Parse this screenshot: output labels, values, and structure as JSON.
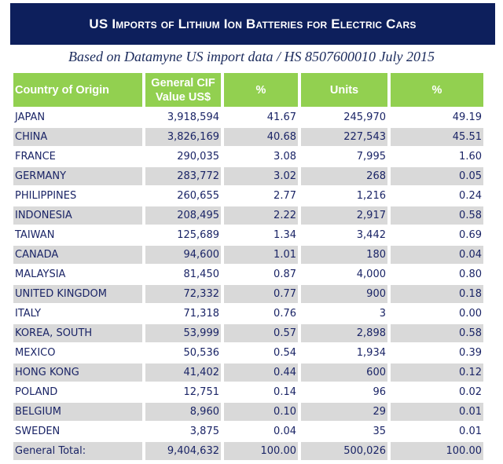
{
  "title": "US Imports of Lithium Ion Batteries for Electric Cars",
  "subtitle": "Based on Datamyne US import data / HS 8507600010 July 2015",
  "colors": {
    "title_bg": "#0d1f5c",
    "header_bg": "#92d050",
    "row_shade": "#d9d9d9",
    "text": "#1a2466"
  },
  "headers": [
    "Country of Origin",
    "General CIF Value US$",
    "%",
    "Units",
    "%"
  ],
  "header_lines": {
    "cif_line1": "General CIF",
    "cif_line2": "Value US$"
  },
  "rows": [
    {
      "country": "JAPAN",
      "value": "3,918,594",
      "value_pct": "41.67",
      "units": "245,970",
      "units_pct": "49.19"
    },
    {
      "country": "CHINA",
      "value": "3,826,169",
      "value_pct": "40.68",
      "units": "227,543",
      "units_pct": "45.51"
    },
    {
      "country": "FRANCE",
      "value": "290,035",
      "value_pct": "3.08",
      "units": "7,995",
      "units_pct": "1.60"
    },
    {
      "country": "GERMANY",
      "value": "283,772",
      "value_pct": "3.02",
      "units": "268",
      "units_pct": "0.05"
    },
    {
      "country": "PHILIPPINES",
      "value": "260,655",
      "value_pct": "2.77",
      "units": "1,216",
      "units_pct": "0.24"
    },
    {
      "country": "INDONESIA",
      "value": "208,495",
      "value_pct": "2.22",
      "units": "2,917",
      "units_pct": "0.58"
    },
    {
      "country": "TAIWAN",
      "value": "125,689",
      "value_pct": "1.34",
      "units": "3,442",
      "units_pct": "0.69"
    },
    {
      "country": "CANADA",
      "value": "94,600",
      "value_pct": "1.01",
      "units": "180",
      "units_pct": "0.04"
    },
    {
      "country": "MALAYSIA",
      "value": "81,450",
      "value_pct": "0.87",
      "units": "4,000",
      "units_pct": "0.80"
    },
    {
      "country": "UNITED KINGDOM",
      "value": "72,332",
      "value_pct": "0.77",
      "units": "900",
      "units_pct": "0.18"
    },
    {
      "country": "ITALY",
      "value": "71,318",
      "value_pct": "0.76",
      "units": "3",
      "units_pct": "0.00"
    },
    {
      "country": "KOREA, SOUTH",
      "value": "53,999",
      "value_pct": "0.57",
      "units": "2,898",
      "units_pct": "0.58"
    },
    {
      "country": "MEXICO",
      "value": "50,536",
      "value_pct": "0.54",
      "units": "1,934",
      "units_pct": "0.39"
    },
    {
      "country": "HONG KONG",
      "value": "41,402",
      "value_pct": "0.44",
      "units": "600",
      "units_pct": "0.12"
    },
    {
      "country": "POLAND",
      "value": "12,751",
      "value_pct": "0.14",
      "units": "96",
      "units_pct": "0.02"
    },
    {
      "country": "BELGIUM",
      "value": "8,960",
      "value_pct": "0.10",
      "units": "29",
      "units_pct": "0.01"
    },
    {
      "country": "SWEDEN",
      "value": "3,875",
      "value_pct": "0.04",
      "units": "35",
      "units_pct": "0.01"
    }
  ],
  "total": {
    "country": "General Total:",
    "value": "9,404,632",
    "value_pct": "100.00",
    "units": "500,026",
    "units_pct": "100.00"
  }
}
